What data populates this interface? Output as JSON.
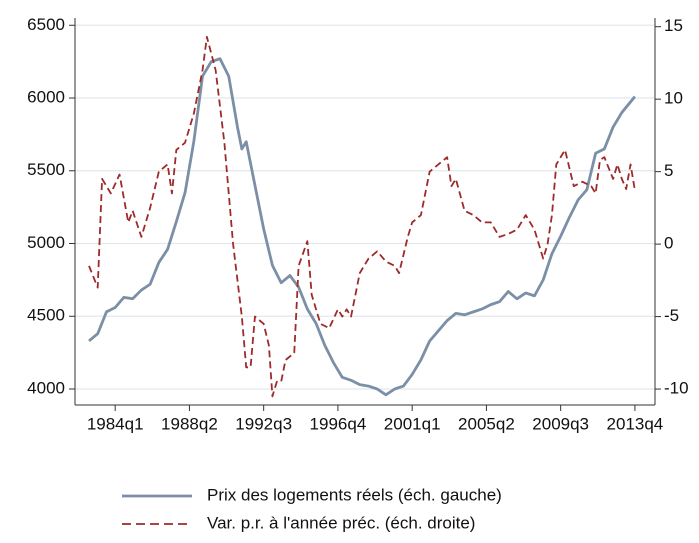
{
  "chart_data": {
    "type": "line",
    "xlim": [
      1981.7,
      2014.9
    ],
    "xticks": [
      {
        "value": 1984,
        "label": "1984q1"
      },
      {
        "value": 1988.25,
        "label": "1988q2"
      },
      {
        "value": 1992.5,
        "label": "1992q3"
      },
      {
        "value": 1996.75,
        "label": "1996q4"
      },
      {
        "value": 2001,
        "label": "2001q1"
      },
      {
        "value": 2005.25,
        "label": "2005q2"
      },
      {
        "value": 2009.5,
        "label": "2009q3"
      },
      {
        "value": 2013.75,
        "label": "2013q4"
      }
    ],
    "ylim": [
      3890,
      6550
    ],
    "yticks": [
      4000,
      4500,
      5000,
      5500,
      6000,
      6500
    ],
    "y2lim": [
      -11.1,
      15.6
    ],
    "y2ticks": [
      -10,
      -5,
      0,
      5,
      10,
      15
    ],
    "grid": true,
    "legend": "bottom",
    "series": [
      {
        "name": "Prix des logements réels (éch. gauche)",
        "color": "#7b8fa6",
        "dash": false,
        "x": [
          1982.5,
          1983,
          1983.5,
          1984,
          1984.5,
          1985,
          1985.5,
          1986,
          1986.5,
          1987,
          1987.5,
          1988,
          1988.5,
          1989,
          1989.5,
          1990,
          1990.5,
          1991,
          1991.25,
          1991.5,
          1992,
          1992.5,
          1993,
          1993.5,
          1994,
          1994.5,
          1995,
          1995.5,
          1996,
          1996.5,
          1997,
          1997.5,
          1998,
          1998.5,
          1999,
          1999.5,
          2000,
          2000.5,
          2001,
          2001.5,
          2002,
          2002.5,
          2003,
          2003.5,
          2004,
          2004.5,
          2005,
          2005.5,
          2006,
          2006.5,
          2007,
          2007.5,
          2008,
          2008.5,
          2009,
          2009.5,
          2010,
          2010.5,
          2011,
          2011.5,
          2012,
          2012.5,
          2013,
          2013.75
        ],
        "values": [
          4330,
          4380,
          4530,
          4560,
          4630,
          4620,
          4680,
          4720,
          4870,
          4960,
          5150,
          5350,
          5700,
          6150,
          6250,
          6270,
          6150,
          5800,
          5650,
          5700,
          5400,
          5100,
          4850,
          4730,
          4780,
          4700,
          4550,
          4450,
          4300,
          4180,
          4080,
          4060,
          4030,
          4020,
          4000,
          3960,
          4000,
          4020,
          4100,
          4200,
          4330,
          4400,
          4470,
          4520,
          4510,
          4530,
          4550,
          4580,
          4600,
          4670,
          4620,
          4660,
          4640,
          4750,
          4930,
          5050,
          5180,
          5300,
          5370,
          5620,
          5650,
          5800,
          5900,
          6010
        ]
      },
      {
        "name": "Var. p.r. à l'année préc. (éch. droite)",
        "color": "#9e2a2b",
        "dash": true,
        "axis": "y2",
        "x": [
          1982.5,
          1983,
          1983.25,
          1983.75,
          1984.25,
          1984.75,
          1985,
          1985.5,
          1986,
          1986.5,
          1987,
          1987.25,
          1987.5,
          1988,
          1988.5,
          1989,
          1989.25,
          1989.75,
          1990.25,
          1990.75,
          1991.25,
          1991.5,
          1991.75,
          1992,
          1992.5,
          1992.8,
          1993,
          1993.25,
          1993.5,
          1993.75,
          1994.25,
          1994.5,
          1995,
          1995.25,
          1995.75,
          1996.25,
          1996.75,
          1997,
          1997.25,
          1997.5,
          1998,
          1998.5,
          1999,
          1999.5,
          2000,
          2000.25,
          2000.75,
          2001,
          2001.5,
          2002,
          2002.5,
          2003,
          2003.25,
          2003.5,
          2004,
          2004.5,
          2005,
          2005.5,
          2006,
          2006.5,
          2007,
          2007.5,
          2008,
          2008.5,
          2008.75,
          2009,
          2009.25,
          2009.75,
          2010.25,
          2010.75,
          2011.25,
          2011.5,
          2011.75,
          2012,
          2012.5,
          2012.75,
          2013,
          2013.25,
          2013.5,
          2013.75
        ],
        "values": [
          -1.5,
          -3,
          4.5,
          3.5,
          4.8,
          1.5,
          2.3,
          0.5,
          2.5,
          5,
          5.5,
          3.5,
          6.5,
          7,
          9,
          12,
          14.3,
          12,
          7,
          0,
          -5,
          -8.5,
          -8.5,
          -5,
          -5.5,
          -7,
          -10.5,
          -9.5,
          -9.5,
          -8,
          -7.5,
          -1.5,
          0.2,
          -3.5,
          -5.5,
          -5.8,
          -4.5,
          -5,
          -4.5,
          -5,
          -2,
          -1,
          -0.5,
          -1.2,
          -1.5,
          -2,
          0.5,
          1.5,
          2,
          5,
          5.5,
          6,
          4,
          4.5,
          2.3,
          2,
          1.5,
          1.5,
          0.5,
          0.7,
          1,
          2,
          1,
          -1,
          0,
          2,
          5.5,
          6.5,
          4,
          4.3,
          4,
          3.5,
          5.8,
          6,
          4.5,
          5.5,
          4.5,
          3.8,
          5.5,
          3.7
        ]
      }
    ]
  }
}
